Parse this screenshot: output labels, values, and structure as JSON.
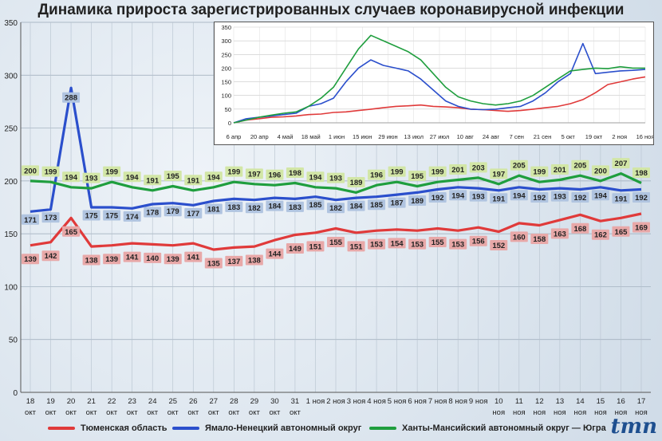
{
  "title": "Динамика прироста зарегистрированных случаев коронавирусной инфекции",
  "colors": {
    "tyumen": "#e03a3a",
    "yamal": "#2b4fcc",
    "hmao": "#1f9e3e"
  },
  "chart_data": [
    {
      "type": "line",
      "ylim": [
        0,
        350
      ],
      "yticks": [
        "0",
        "50",
        "100",
        "150",
        "200",
        "250",
        "300",
        "350"
      ],
      "grid": true,
      "legend_position": "bottom",
      "categories": [
        [
          "18",
          "окт"
        ],
        [
          "19",
          "окт"
        ],
        [
          "20",
          "окт"
        ],
        [
          "21",
          "окт"
        ],
        [
          "22",
          "окт"
        ],
        [
          "23",
          "окт"
        ],
        [
          "24",
          "окт"
        ],
        [
          "25",
          "окт"
        ],
        [
          "26",
          "окт"
        ],
        [
          "27",
          "окт"
        ],
        [
          "28",
          "окт"
        ],
        [
          "29",
          "окт"
        ],
        [
          "30",
          "окт"
        ],
        [
          "31",
          "окт"
        ],
        [
          "1 ноя",
          ""
        ],
        [
          "2 ноя",
          ""
        ],
        [
          "3 ноя",
          ""
        ],
        [
          "4 ноя",
          ""
        ],
        [
          "5 ноя",
          ""
        ],
        [
          "6 ноя",
          ""
        ],
        [
          "7 ноя",
          ""
        ],
        [
          "8 ноя",
          ""
        ],
        [
          "9 ноя",
          ""
        ],
        [
          "10",
          "ноя"
        ],
        [
          "11",
          "ноя"
        ],
        [
          "12",
          "ноя"
        ],
        [
          "13",
          "ноя"
        ],
        [
          "14",
          "ноя"
        ],
        [
          "15",
          "ноя"
        ],
        [
          "16",
          "ноя"
        ],
        [
          "17",
          "ноя"
        ]
      ],
      "series": [
        {
          "name": "Тюменская область",
          "color": "#e03a3a",
          "label_bg": "#e8a8a8",
          "values": [
            139,
            142,
            165,
            138,
            139,
            141,
            140,
            139,
            141,
            135,
            137,
            138,
            144,
            149,
            151,
            155,
            151,
            153,
            154,
            153,
            155,
            153,
            156,
            152,
            160,
            158,
            163,
            168,
            162,
            165,
            169
          ]
        },
        {
          "name": "Ямало-Ненецкий автономный округ",
          "color": "#2b4fcc",
          "label_bg": "#b0c4e0",
          "values": [
            171,
            173,
            288,
            175,
            175,
            174,
            178,
            179,
            177,
            181,
            183,
            182,
            184,
            183,
            185,
            182,
            184,
            185,
            187,
            189,
            192,
            194,
            193,
            191,
            194,
            192,
            193,
            192,
            194,
            191,
            192
          ]
        },
        {
          "name": "Ханты-Мансийский автономный округ — Югра",
          "color": "#1f9e3e",
          "label_bg": "#d2e6a6",
          "values": [
            200,
            199,
            194,
            193,
            199,
            194,
            191,
            195,
            191,
            194,
            199,
            197,
            196,
            198,
            194,
            193,
            189,
            196,
            199,
            195,
            199,
            201,
            203,
            197,
            205,
            199,
            201,
            205,
            200,
            207,
            198
          ]
        }
      ]
    },
    {
      "type": "line",
      "ylim": [
        0,
        350
      ],
      "yticks": [
        "0",
        "50",
        "100",
        "150",
        "200",
        "250",
        "300",
        "350"
      ],
      "grid": true,
      "xticks": [
        "6 апр",
        "20 апр",
        "4 май",
        "18 май",
        "1 июн",
        "15 июн",
        "29 июн",
        "13 июл",
        "27 июл",
        "10 авг",
        "24 авг",
        "7 сен",
        "21 сен",
        "5 окт",
        "19 окт",
        "2 ноя",
        "16 ноя"
      ],
      "series": [
        {
          "name": "Тюменская область",
          "color": "#e03a3a",
          "values": [
            0,
            10,
            15,
            20,
            22,
            25,
            30,
            32,
            38,
            40,
            45,
            50,
            55,
            60,
            62,
            65,
            60,
            58,
            55,
            50,
            48,
            45,
            42,
            45,
            50,
            55,
            60,
            70,
            85,
            110,
            140,
            150,
            160,
            168
          ]
        },
        {
          "name": "Ямало-Ненецкий автономный округ",
          "color": "#2b4fcc",
          "values": [
            0,
            15,
            20,
            25,
            30,
            35,
            60,
            70,
            90,
            150,
            200,
            230,
            210,
            200,
            190,
            160,
            120,
            80,
            60,
            50,
            48,
            50,
            55,
            60,
            80,
            110,
            150,
            180,
            290,
            180,
            185,
            190,
            192,
            195
          ]
        },
        {
          "name": "Ханты-Мансийский автономный округ — Югра",
          "color": "#1f9e3e",
          "values": [
            0,
            10,
            20,
            28,
            35,
            40,
            60,
            90,
            130,
            200,
            270,
            320,
            300,
            280,
            260,
            230,
            180,
            130,
            95,
            80,
            70,
            65,
            70,
            80,
            100,
            130,
            160,
            190,
            195,
            200,
            198,
            205,
            200,
            200
          ]
        }
      ]
    }
  ]
}
